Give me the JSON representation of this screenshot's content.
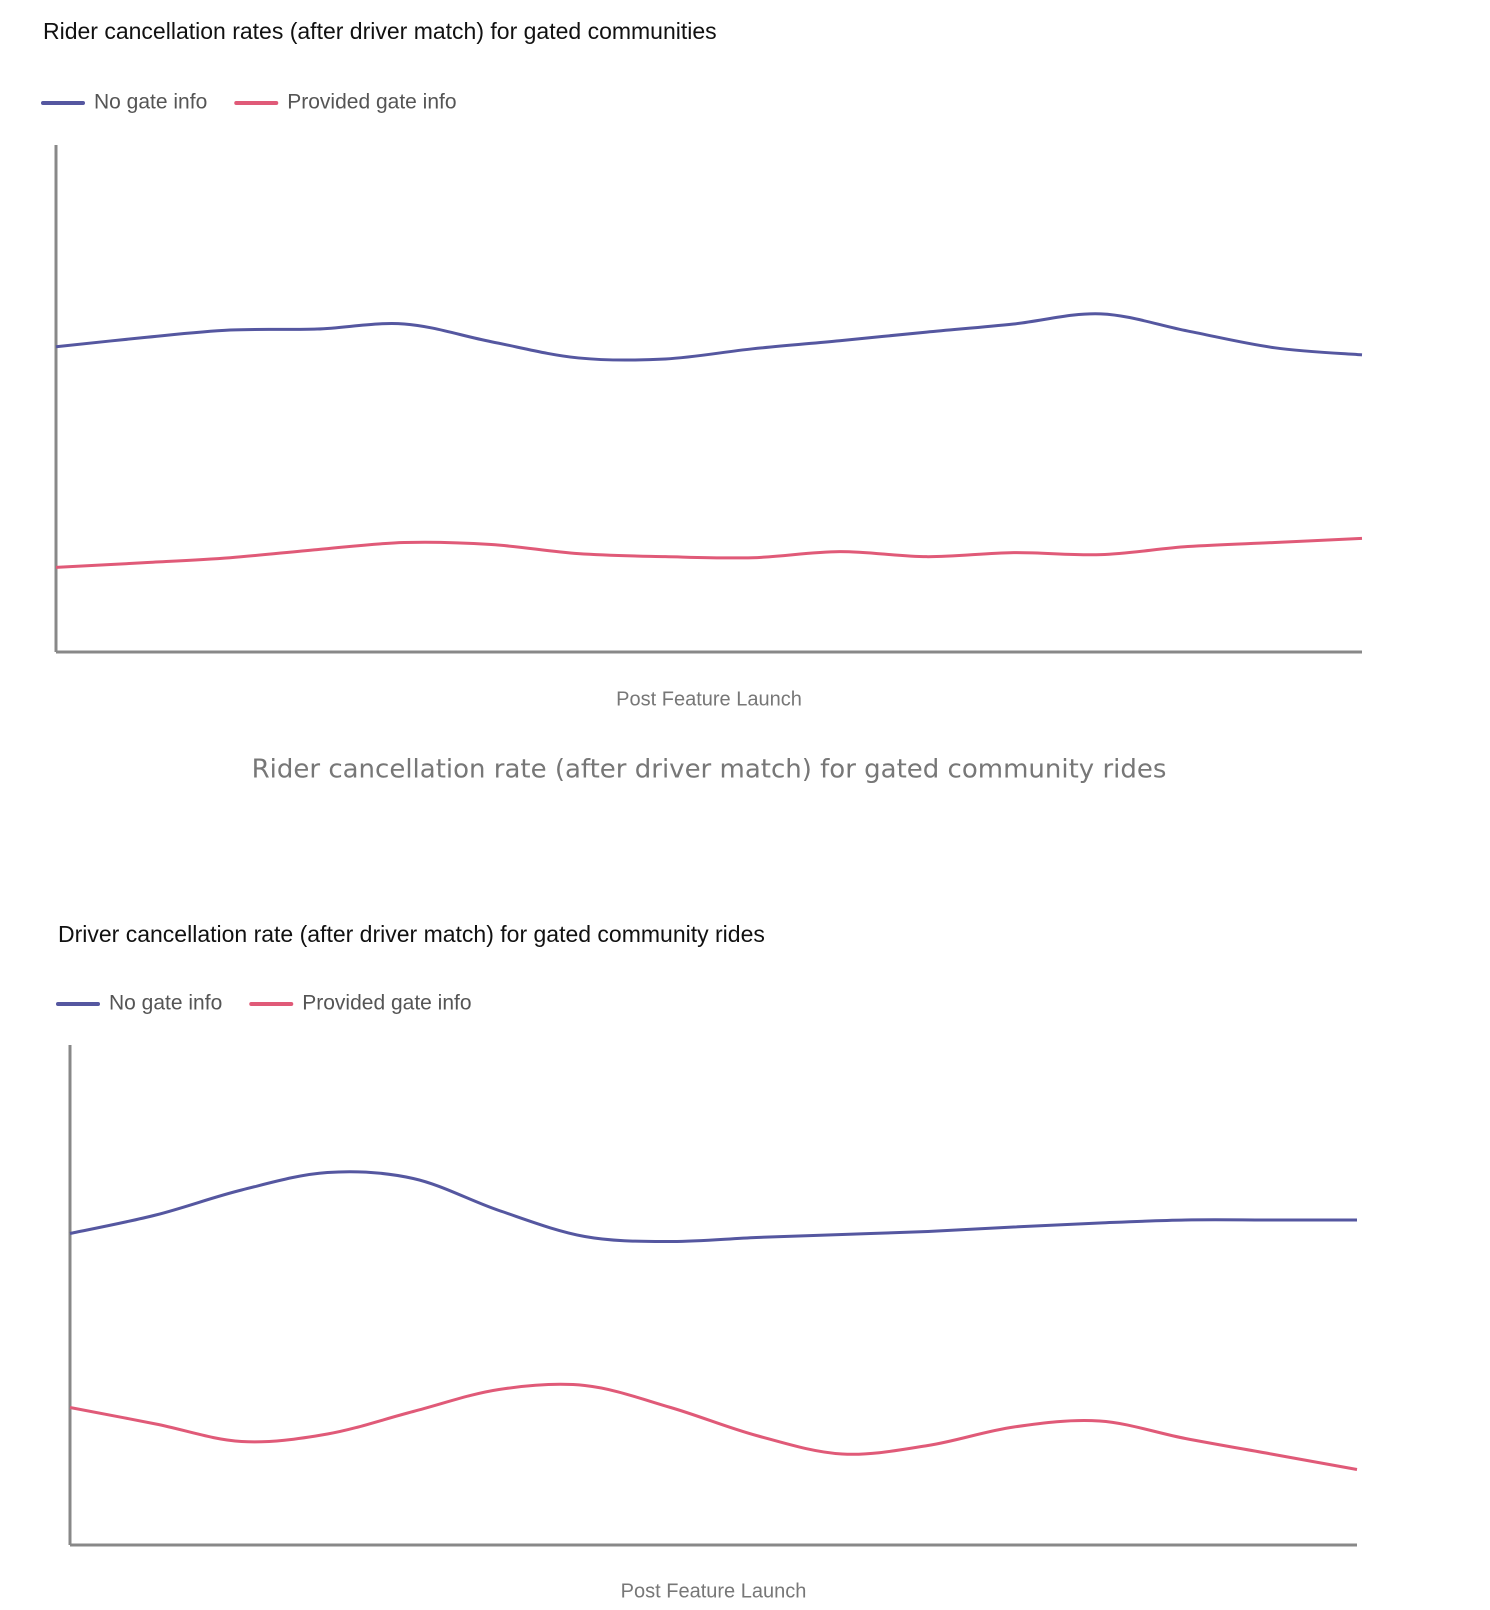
{
  "chart_data": [
    {
      "type": "line",
      "title": "Rider cancellation rates (after driver match) for gated communities",
      "xlabel": "Post Feature Launch",
      "ylim": [
        0,
        100
      ],
      "legend": "top-left",
      "series": [
        {
          "name": "No gate info",
          "color": "#5557a0",
          "values": [
            60.2,
            62.0,
            63.5,
            63.7,
            64.7,
            61.2,
            58.0,
            57.8,
            59.8,
            61.4,
            63.1,
            64.7,
            66.7,
            63.3,
            60.0,
            58.6
          ]
        },
        {
          "name": "Provided gate info",
          "color": "#e05a78",
          "values": [
            16.7,
            17.6,
            18.6,
            20.2,
            21.6,
            21.2,
            19.4,
            18.8,
            18.6,
            19.8,
            18.8,
            19.6,
            19.2,
            20.8,
            21.6,
            22.4
          ]
        }
      ]
    },
    {
      "type": "line",
      "title": "Driver cancellation rate (after driver match) for gated community rides",
      "xlabel": "Post Feature Launch",
      "ylim": [
        0,
        100
      ],
      "legend": "top-left",
      "series": [
        {
          "name": "No gate info",
          "color": "#5557a0",
          "values": [
            62.3,
            66.0,
            71.0,
            74.5,
            73.3,
            66.9,
            61.7,
            60.7,
            61.5,
            62.1,
            62.7,
            63.6,
            64.4,
            65.0,
            65.0,
            65.0
          ]
        },
        {
          "name": "Provided gate info",
          "color": "#e05a78",
          "values": [
            27.5,
            24.2,
            20.7,
            22.2,
            26.7,
            31.1,
            31.9,
            27.5,
            21.9,
            18.2,
            19.9,
            23.6,
            24.8,
            21.3,
            18.2,
            15.1
          ]
        }
      ]
    }
  ],
  "caption": "Rider cancellation rate (after driver match) for gated community rides"
}
